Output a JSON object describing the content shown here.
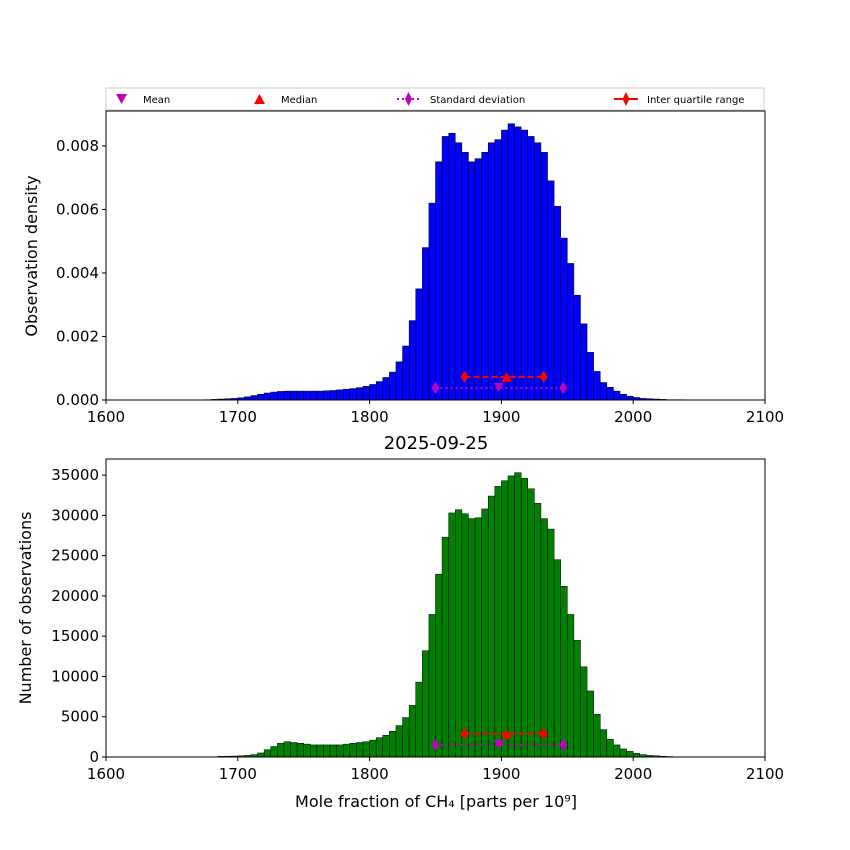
{
  "legend": {
    "mean": "Mean",
    "median": "Median",
    "std": "Standard deviation",
    "iqr": "Inter quartile range"
  },
  "colors": {
    "density_bars": "#0000ff",
    "count_bars": "#008000",
    "mean_marker": "#bf00bf",
    "median_marker": "#ff0000",
    "std_line": "#bf00bf",
    "iqr_line": "#ff0000"
  },
  "chart_data": [
    {
      "type": "bar",
      "title": "",
      "xlabel": "",
      "ylabel": "Observation density",
      "xlim": [
        1600,
        2100
      ],
      "ylim": [
        0,
        0.0091
      ],
      "xticks": [
        "1600",
        "1700",
        "1800",
        "1900",
        "2000",
        "2100"
      ],
      "yticks": [
        "0.000",
        "0.002",
        "0.004",
        "0.006",
        "0.008"
      ],
      "bin_start": 1675,
      "bin_width": 5,
      "values": [
        1e-05,
        2e-05,
        3e-05,
        4e-05,
        5e-05,
        7e-05,
        0.0001,
        0.00014,
        0.00018,
        0.00022,
        0.00025,
        0.00027,
        0.00028,
        0.00028,
        0.00028,
        0.00028,
        0.00028,
        0.00028,
        0.00029,
        0.0003,
        0.00032,
        0.00034,
        0.00036,
        0.00039,
        0.00043,
        0.00049,
        0.00058,
        0.00071,
        0.00088,
        0.0012,
        0.0017,
        0.0025,
        0.0035,
        0.0048,
        0.0062,
        0.0075,
        0.0083,
        0.0084,
        0.0081,
        0.0078,
        0.0075,
        0.0076,
        0.0078,
        0.0081,
        0.0082,
        0.0085,
        0.0087,
        0.0086,
        0.0085,
        0.0083,
        0.0081,
        0.0078,
        0.0069,
        0.0061,
        0.0051,
        0.0043,
        0.0033,
        0.0024,
        0.0015,
        0.0009,
        0.00055,
        0.0004,
        0.00028,
        0.00018,
        0.00012,
        8e-05,
        5e-05,
        4e-05,
        3e-05,
        2e-05,
        1e-05,
        1e-05,
        1e-05,
        5e-06,
        3e-06,
        2e-06
      ],
      "stats": {
        "mean": 1898,
        "median": 1904,
        "q1": 1872,
        "q3": 1932,
        "std_low": 1850,
        "std_high": 1947,
        "mean_y": 0.00038,
        "std_y": 0.00038,
        "median_y": 0.00073,
        "iqr_y": 0.00073
      }
    },
    {
      "type": "bar",
      "title": "2025-09-25",
      "xlabel": "Mole fraction of CH₄ [parts per 10⁹]",
      "ylabel": "Number of observations",
      "xlim": [
        1600,
        2100
      ],
      "ylim": [
        0,
        37000
      ],
      "xticks": [
        "1600",
        "1700",
        "1800",
        "1900",
        "2000",
        "2100"
      ],
      "yticks": [
        "0",
        "5000",
        "10000",
        "15000",
        "20000",
        "25000",
        "30000",
        "35000"
      ],
      "bin_start": 1685,
      "bin_width": 5,
      "values": [
        80,
        100,
        120,
        150,
        200,
        300,
        500,
        900,
        1300,
        1700,
        1900,
        1800,
        1700,
        1600,
        1500,
        1500,
        1500,
        1500,
        1500,
        1600,
        1700,
        1800,
        1900,
        2100,
        2400,
        2700,
        3200,
        3900,
        4900,
        6400,
        9300,
        13200,
        17700,
        22700,
        27300,
        30300,
        30700,
        30200,
        29600,
        29700,
        30800,
        32400,
        33600,
        34300,
        34900,
        35300,
        34600,
        33300,
        31500,
        29600,
        28300,
        24500,
        21200,
        17700,
        14500,
        11200,
        8200,
        5300,
        3400,
        2200,
        1500,
        1000,
        700,
        450,
        300,
        200,
        150,
        100,
        60,
        30
      ],
      "stats": {
        "mean": 1898,
        "median": 1904,
        "q1": 1872,
        "q3": 1932,
        "std_low": 1850,
        "std_high": 1947,
        "mean_y": 1500,
        "std_y": 1500,
        "median_y": 2900,
        "iqr_y": 2900
      }
    }
  ]
}
